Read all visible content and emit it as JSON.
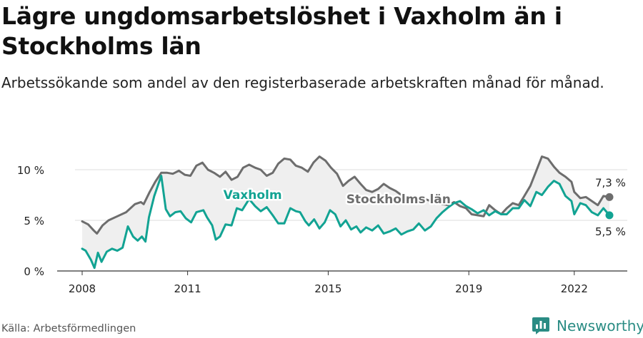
{
  "header": {
    "title": "Lägre ungdomsarbetslöshet i Vaxholm än i Stockholms län",
    "subtitle": "Arbetssökande som andel av den registerbaserade arbetskraften månad för månad."
  },
  "footer": {
    "source": "Källa: Arbetsförmedlingen",
    "brand": "Newsworthy"
  },
  "colors": {
    "stockholm": "#6d6d6d",
    "vaxholm": "#12a393",
    "band": "#efefef",
    "grid": "#dddddd",
    "axis": "#333333",
    "brand": "#2a8c84"
  },
  "chart_data": {
    "type": "line",
    "title": "Lägre ungdomsarbetslöshet i Vaxholm än i Stockholms län",
    "xlabel": "",
    "ylabel": "",
    "xlim": [
      2008,
      2023.5
    ],
    "ylim": [
      0,
      10
    ],
    "x_ticks": [
      2008,
      2011,
      2015,
      2019,
      2022
    ],
    "x_tick_labels": [
      "2008",
      "2011",
      "2015",
      "2019",
      "2022"
    ],
    "y_ticks": [
      0,
      5,
      10
    ],
    "y_tick_labels": [
      "0 %",
      "5 %",
      "10 %"
    ],
    "grid": true,
    "shaded_between_series": true,
    "series": [
      {
        "name": "Stockholms län",
        "color": "#6d6d6d",
        "end_label": "7,3 %",
        "points": [
          [
            2008.0,
            4.9
          ],
          [
            2008.17,
            4.6
          ],
          [
            2008.33,
            4.0
          ],
          [
            2008.42,
            3.7
          ],
          [
            2008.58,
            4.5
          ],
          [
            2008.75,
            5.0
          ],
          [
            2009.0,
            5.4
          ],
          [
            2009.25,
            5.8
          ],
          [
            2009.5,
            6.6
          ],
          [
            2009.67,
            6.8
          ],
          [
            2009.75,
            6.6
          ],
          [
            2009.92,
            7.8
          ],
          [
            2010.08,
            8.8
          ],
          [
            2010.25,
            9.7
          ],
          [
            2010.42,
            9.7
          ],
          [
            2010.58,
            9.6
          ],
          [
            2010.75,
            9.9
          ],
          [
            2010.92,
            9.5
          ],
          [
            2011.08,
            9.4
          ],
          [
            2011.25,
            10.4
          ],
          [
            2011.42,
            10.7
          ],
          [
            2011.58,
            10.0
          ],
          [
            2011.75,
            9.7
          ],
          [
            2011.92,
            9.3
          ],
          [
            2012.08,
            9.8
          ],
          [
            2012.25,
            9.0
          ],
          [
            2012.42,
            9.3
          ],
          [
            2012.58,
            10.2
          ],
          [
            2012.75,
            10.5
          ],
          [
            2012.92,
            10.2
          ],
          [
            2013.08,
            10.0
          ],
          [
            2013.25,
            9.4
          ],
          [
            2013.42,
            9.7
          ],
          [
            2013.58,
            10.6
          ],
          [
            2013.75,
            11.1
          ],
          [
            2013.92,
            11.0
          ],
          [
            2014.08,
            10.4
          ],
          [
            2014.25,
            10.2
          ],
          [
            2014.42,
            9.8
          ],
          [
            2014.58,
            10.7
          ],
          [
            2014.75,
            11.3
          ],
          [
            2014.92,
            10.9
          ],
          [
            2015.08,
            10.2
          ],
          [
            2015.25,
            9.6
          ],
          [
            2015.42,
            8.4
          ],
          [
            2015.58,
            8.9
          ],
          [
            2015.75,
            9.3
          ],
          [
            2015.92,
            8.6
          ],
          [
            2016.08,
            8.0
          ],
          [
            2016.25,
            7.8
          ],
          [
            2016.42,
            8.1
          ],
          [
            2016.58,
            8.6
          ],
          [
            2016.75,
            8.2
          ],
          [
            2016.92,
            7.9
          ],
          [
            2017.08,
            7.5
          ],
          [
            2017.25,
            7.4
          ],
          [
            2017.42,
            7.3
          ],
          [
            2017.58,
            7.2
          ],
          [
            2017.75,
            7.1
          ],
          [
            2017.92,
            6.9
          ],
          [
            2018.08,
            6.8
          ],
          [
            2018.25,
            6.6
          ],
          [
            2018.42,
            6.5
          ],
          [
            2018.58,
            6.8
          ],
          [
            2018.75,
            6.4
          ],
          [
            2018.92,
            6.2
          ],
          [
            2019.08,
            5.6
          ],
          [
            2019.25,
            5.5
          ],
          [
            2019.42,
            5.4
          ],
          [
            2019.58,
            6.5
          ],
          [
            2019.75,
            6.0
          ],
          [
            2019.92,
            5.6
          ],
          [
            2020.08,
            6.2
          ],
          [
            2020.25,
            6.7
          ],
          [
            2020.42,
            6.5
          ],
          [
            2020.58,
            7.4
          ],
          [
            2020.75,
            8.4
          ],
          [
            2020.92,
            9.9
          ],
          [
            2021.08,
            11.3
          ],
          [
            2021.25,
            11.1
          ],
          [
            2021.42,
            10.3
          ],
          [
            2021.58,
            9.7
          ],
          [
            2021.75,
            9.3
          ],
          [
            2021.92,
            8.8
          ],
          [
            2022.0,
            7.8
          ],
          [
            2022.17,
            7.2
          ],
          [
            2022.33,
            7.3
          ],
          [
            2022.5,
            6.9
          ],
          [
            2022.67,
            6.5
          ],
          [
            2022.83,
            7.4
          ],
          [
            2023.0,
            7.3
          ]
        ]
      },
      {
        "name": "Vaxholm",
        "color": "#12a393",
        "end_label": "5,5 %",
        "points": [
          [
            2008.0,
            2.2
          ],
          [
            2008.1,
            2.0
          ],
          [
            2008.25,
            1.1
          ],
          [
            2008.35,
            0.3
          ],
          [
            2008.45,
            1.8
          ],
          [
            2008.55,
            0.9
          ],
          [
            2008.7,
            1.9
          ],
          [
            2008.85,
            2.2
          ],
          [
            2009.0,
            2.0
          ],
          [
            2009.15,
            2.3
          ],
          [
            2009.3,
            4.4
          ],
          [
            2009.45,
            3.4
          ],
          [
            2009.58,
            3.0
          ],
          [
            2009.7,
            3.4
          ],
          [
            2009.8,
            2.9
          ],
          [
            2009.9,
            5.3
          ],
          [
            2010.05,
            7.4
          ],
          [
            2010.25,
            9.4
          ],
          [
            2010.38,
            6.1
          ],
          [
            2010.5,
            5.4
          ],
          [
            2010.65,
            5.8
          ],
          [
            2010.8,
            5.9
          ],
          [
            2010.95,
            5.2
          ],
          [
            2011.1,
            4.8
          ],
          [
            2011.25,
            5.8
          ],
          [
            2011.45,
            6.0
          ],
          [
            2011.55,
            5.3
          ],
          [
            2011.7,
            4.5
          ],
          [
            2011.8,
            3.1
          ],
          [
            2011.92,
            3.4
          ],
          [
            2012.08,
            4.6
          ],
          [
            2012.25,
            4.5
          ],
          [
            2012.4,
            6.2
          ],
          [
            2012.55,
            6.0
          ],
          [
            2012.75,
            7.1
          ],
          [
            2012.92,
            6.4
          ],
          [
            2013.08,
            5.9
          ],
          [
            2013.25,
            6.3
          ],
          [
            2013.42,
            5.5
          ],
          [
            2013.58,
            4.7
          ],
          [
            2013.75,
            4.7
          ],
          [
            2013.92,
            6.2
          ],
          [
            2014.08,
            5.9
          ],
          [
            2014.2,
            5.8
          ],
          [
            2014.35,
            4.9
          ],
          [
            2014.45,
            4.5
          ],
          [
            2014.6,
            5.1
          ],
          [
            2014.75,
            4.2
          ],
          [
            2014.9,
            4.8
          ],
          [
            2015.05,
            6.0
          ],
          [
            2015.2,
            5.6
          ],
          [
            2015.35,
            4.4
          ],
          [
            2015.5,
            5.0
          ],
          [
            2015.65,
            4.1
          ],
          [
            2015.8,
            4.4
          ],
          [
            2015.92,
            3.8
          ],
          [
            2016.08,
            4.3
          ],
          [
            2016.25,
            4.0
          ],
          [
            2016.42,
            4.5
          ],
          [
            2016.58,
            3.7
          ],
          [
            2016.75,
            3.9
          ],
          [
            2016.92,
            4.2
          ],
          [
            2017.08,
            3.6
          ],
          [
            2017.25,
            3.9
          ],
          [
            2017.42,
            4.1
          ],
          [
            2017.58,
            4.7
          ],
          [
            2017.75,
            4.0
          ],
          [
            2017.92,
            4.4
          ],
          [
            2018.08,
            5.2
          ],
          [
            2018.25,
            5.8
          ],
          [
            2018.42,
            6.3
          ],
          [
            2018.58,
            6.7
          ],
          [
            2018.75,
            6.9
          ],
          [
            2018.92,
            6.4
          ],
          [
            2019.08,
            6.1
          ],
          [
            2019.25,
            5.7
          ],
          [
            2019.42,
            6.0
          ],
          [
            2019.58,
            5.5
          ],
          [
            2019.75,
            5.9
          ],
          [
            2019.92,
            5.6
          ],
          [
            2020.08,
            5.6
          ],
          [
            2020.25,
            6.2
          ],
          [
            2020.42,
            6.2
          ],
          [
            2020.58,
            7.0
          ],
          [
            2020.75,
            6.4
          ],
          [
            2020.92,
            7.8
          ],
          [
            2021.08,
            7.5
          ],
          [
            2021.25,
            8.3
          ],
          [
            2021.42,
            8.9
          ],
          [
            2021.58,
            8.6
          ],
          [
            2021.75,
            7.4
          ],
          [
            2021.92,
            6.9
          ],
          [
            2022.0,
            5.6
          ],
          [
            2022.17,
            6.7
          ],
          [
            2022.33,
            6.5
          ],
          [
            2022.5,
            5.8
          ],
          [
            2022.67,
            5.5
          ],
          [
            2022.83,
            6.2
          ],
          [
            2023.0,
            5.5
          ]
        ]
      }
    ],
    "annotations": [
      {
        "text": "Vaxholm",
        "series": "Vaxholm",
        "x": 2012.85,
        "y": 7.1
      },
      {
        "text": "Stockholms län",
        "series": "Stockholms län",
        "x": 2017.0,
        "y": 6.7
      }
    ]
  }
}
